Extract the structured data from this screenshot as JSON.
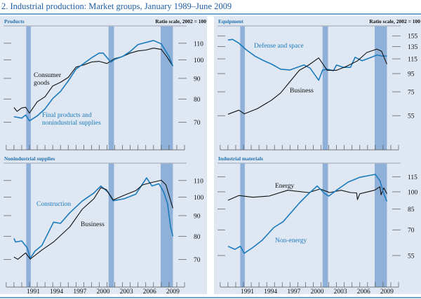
{
  "title": "2.   Industrial production: Market groups, January 1989–June 2009",
  "colors": {
    "background": "#dfe7f2",
    "recession": "#8fb0d8",
    "blue_series": "#1b7bbd",
    "black_series": "#111111",
    "title": "#1f5fa6"
  },
  "recessions": [
    [
      1990.58,
      1991.17
    ],
    [
      2001.2,
      2001.9
    ],
    [
      2007.92,
      2009.5
    ]
  ],
  "chart_data": [
    {
      "type": "line",
      "title": "Products",
      "scale_note": "Ratio scale, 2002 = 100",
      "yscale": "log",
      "ylim": [
        62,
        121
      ],
      "yticks": [
        70,
        80,
        90,
        100,
        110
      ],
      "xlim": [
        1988,
        2011
      ],
      "xticks": [],
      "grid": false,
      "series": [
        {
          "name": "Consumer goods",
          "color": "#111111",
          "label_lines": [
            "Consumer",
            "goods"
          ],
          "points": [
            [
              1989,
              76.2
            ],
            [
              1989.4,
              74.5
            ],
            [
              1990,
              76
            ],
            [
              1990.5,
              76.3
            ],
            [
              1991,
              73.8
            ],
            [
              1992,
              78.7
            ],
            [
              1993,
              81
            ],
            [
              1994,
              86.2
            ],
            [
              1995,
              88
            ],
            [
              1996,
              90.5
            ],
            [
              1997,
              96
            ],
            [
              1998,
              97.2
            ],
            [
              1999,
              98.8
            ],
            [
              2000,
              99.2
            ],
            [
              2001,
              98
            ],
            [
              2002,
              100.8
            ],
            [
              2003,
              102
            ],
            [
              2004,
              104
            ],
            [
              2005,
              105.3
            ],
            [
              2006,
              105.8
            ],
            [
              2007,
              107
            ],
            [
              2008,
              106.2
            ],
            [
              2008.7,
              102
            ],
            [
              2009.5,
              96.5
            ]
          ]
        },
        {
          "name": "Final products and nonindustrial supplies",
          "color": "#1b7bbd",
          "label_lines": [
            "Final products and",
            "nonindustrial supplies"
          ],
          "points": [
            [
              1989,
              72.3
            ],
            [
              1990,
              71.7
            ],
            [
              1990.5,
              73
            ],
            [
              1991,
              70.6
            ],
            [
              1992,
              72.6
            ],
            [
              1993,
              75.6
            ],
            [
              1994,
              80.2
            ],
            [
              1995,
              83.5
            ],
            [
              1996,
              88.7
            ],
            [
              1997,
              94.9
            ],
            [
              1998,
              98
            ],
            [
              1999,
              101.2
            ],
            [
              2000,
              104
            ],
            [
              2000.5,
              104
            ],
            [
              2001.5,
              98.8
            ],
            [
              2002,
              100.4
            ],
            [
              2003,
              102
            ],
            [
              2004,
              105
            ],
            [
              2005,
              109.2
            ],
            [
              2006,
              110.5
            ],
            [
              2007,
              111.8
            ],
            [
              2008,
              109.6
            ],
            [
              2009,
              102
            ],
            [
              2009.5,
              96.5
            ]
          ]
        }
      ]
    },
    {
      "type": "line",
      "title": "Equipment",
      "scale_note": "Ratio scale, 2002 = 100",
      "yscale": "log",
      "ylim": [
        38.3,
        174.8
      ],
      "yticks": [
        55,
        75,
        95,
        115,
        135,
        155
      ],
      "xlim": [
        1988,
        2011
      ],
      "xticks": [],
      "grid": false,
      "series": [
        {
          "name": "Defense and space",
          "color": "#1b7bbd",
          "label_lines": [
            "Defense and space"
          ],
          "points": [
            [
              1989,
              147
            ],
            [
              1989.6,
              148
            ],
            [
              1990.4,
              141
            ],
            [
              1991.3,
              130
            ],
            [
              1992.5,
              119
            ],
            [
              1993.5,
              113
            ],
            [
              1994.7,
              107
            ],
            [
              1995.8,
              100.6
            ],
            [
              1997,
              99.6
            ],
            [
              1998.8,
              106.3
            ],
            [
              1999.6,
              102
            ],
            [
              2000.7,
              87.1
            ],
            [
              2001.2,
              99.3
            ],
            [
              2001.8,
              100.6
            ],
            [
              2002.6,
              98.6
            ],
            [
              2003,
              106.1
            ],
            [
              2003.9,
              103
            ],
            [
              2004.8,
              103
            ],
            [
              2005.4,
              117.4
            ],
            [
              2006.3,
              112.2
            ],
            [
              2007.5,
              117.4
            ],
            [
              2008.2,
              121
            ],
            [
              2008.9,
              119.3
            ],
            [
              2009.5,
              119.3
            ]
          ]
        },
        {
          "name": "Business",
          "color": "#111111",
          "label_lines": [
            "Business"
          ],
          "points": [
            [
              1989,
              56
            ],
            [
              1990.4,
              59.1
            ],
            [
              1991.1,
              56.3
            ],
            [
              1992.8,
              60.3
            ],
            [
              1994.6,
              67.2
            ],
            [
              1995.8,
              73.9
            ],
            [
              1997,
              85.6
            ],
            [
              1998.2,
              99.1
            ],
            [
              1999.4,
              106
            ],
            [
              2000.7,
              116.4
            ],
            [
              2001.8,
              99.1
            ],
            [
              2003,
              99.1
            ],
            [
              2004.2,
              104
            ],
            [
              2005.7,
              112
            ],
            [
              2006.9,
              124.9
            ],
            [
              2008.2,
              130.6
            ],
            [
              2008.8,
              127
            ],
            [
              2009.5,
              107.4
            ]
          ]
        }
      ]
    },
    {
      "type": "line",
      "title": "Nonindustrial supplies",
      "scale_note": "",
      "yscale": "log",
      "ylim": [
        62,
        121
      ],
      "yticks": [
        70,
        80,
        90,
        100,
        110
      ],
      "xlim": [
        1988,
        2011
      ],
      "xticks": [
        "1991",
        "1994",
        "1997",
        "2000",
        "2003",
        "2006",
        "2009"
      ],
      "grid": false,
      "series": [
        {
          "name": "Construction",
          "color": "#1b7bbd",
          "label_lines": [
            "Construction"
          ],
          "points": [
            [
              1989,
              79
            ],
            [
              1989.2,
              77.4
            ],
            [
              1990,
              77.9
            ],
            [
              1990.7,
              74.9
            ],
            [
              1991.1,
              70.5
            ],
            [
              1991.7,
              73.4
            ],
            [
              1992.6,
              75.9
            ],
            [
              1994.1,
              86.7
            ],
            [
              1995,
              86.1
            ],
            [
              1996.2,
              91.5
            ],
            [
              1997.8,
              97.8
            ],
            [
              1999.3,
              102.4
            ],
            [
              2000.2,
              106.6
            ],
            [
              2001.1,
              103.1
            ],
            [
              2001.8,
              98
            ],
            [
              2003.2,
              99.1
            ],
            [
              2004.7,
              101.7
            ],
            [
              2006.1,
              111.7
            ],
            [
              2006.8,
              106.6
            ],
            [
              2007.7,
              108
            ],
            [
              2008.3,
              103.1
            ],
            [
              2008.8,
              96.5
            ],
            [
              2009.2,
              84.4
            ],
            [
              2009.5,
              80
            ]
          ]
        },
        {
          "name": "Business",
          "color": "#111111",
          "label_lines": [
            "Business"
          ],
          "points": [
            [
              1989,
              71
            ],
            [
              1989.5,
              70.1
            ],
            [
              1990.5,
              72.7
            ],
            [
              1991.1,
              70.2
            ],
            [
              1992.6,
              73.9
            ],
            [
              1994.1,
              77.4
            ],
            [
              1996.2,
              84.4
            ],
            [
              1997.8,
              93.3
            ],
            [
              1999.3,
              99.1
            ],
            [
              2000.2,
              105.6
            ],
            [
              2000.9,
              104.5
            ],
            [
              2001.8,
              98.4
            ],
            [
              2003.2,
              101.1
            ],
            [
              2004.7,
              103.8
            ],
            [
              2005.6,
              107.3
            ],
            [
              2006.8,
              108.8
            ],
            [
              2008,
              110.2
            ],
            [
              2008.6,
              107.3
            ],
            [
              2009.5,
              93.9
            ]
          ]
        }
      ]
    },
    {
      "type": "line",
      "title": "Industrial materials",
      "scale_note": "",
      "yscale": "log",
      "ylim": [
        43.4,
        130
      ],
      "yticks": [
        55,
        70,
        85,
        100,
        115
      ],
      "xlim": [
        1988,
        2011
      ],
      "xticks": [
        "1991",
        "1994",
        "1997",
        "2000",
        "2003",
        "2006",
        "2009"
      ],
      "grid": false,
      "series": [
        {
          "name": "Energy",
          "color": "#111111",
          "label_lines": [
            "Energy"
          ],
          "points": [
            [
              1989,
              92.4
            ],
            [
              1990.4,
              96.6
            ],
            [
              1992.2,
              95
            ],
            [
              1994.3,
              96.1
            ],
            [
              1996.7,
              101.5
            ],
            [
              1999.4,
              99.3
            ],
            [
              2000.9,
              102.7
            ],
            [
              2002.1,
              99.3
            ],
            [
              2003.6,
              101.5
            ],
            [
              2004.8,
              99.3
            ],
            [
              2005.6,
              99
            ],
            [
              2005.7,
              93
            ],
            [
              2006,
              98.2
            ],
            [
              2007.9,
              101.5
            ],
            [
              2008.6,
              104.9
            ],
            [
              2008.75,
              97.2
            ],
            [
              2009.1,
              103.8
            ],
            [
              2009.5,
              98.2
            ]
          ]
        },
        {
          "name": "Non-energy",
          "color": "#1b7bbd",
          "label_lines": [
            "Non-energy"
          ],
          "points": [
            [
              1989,
              60
            ],
            [
              1989.9,
              58.3
            ],
            [
              1990.6,
              60
            ],
            [
              1991.1,
              56.2
            ],
            [
              1992.2,
              59.3
            ],
            [
              1993.4,
              63.4
            ],
            [
              1994.9,
              71.5
            ],
            [
              1996.1,
              75.5
            ],
            [
              1998.2,
              90
            ],
            [
              1999.4,
              98.2
            ],
            [
              2000.5,
              105.6
            ],
            [
              2001.5,
              98.2
            ],
            [
              2002,
              96.1
            ],
            [
              2003,
              101.5
            ],
            [
              2004.5,
              109.6
            ],
            [
              2006,
              114.6
            ],
            [
              2008,
              117.8
            ],
            [
              2008.6,
              110.9
            ],
            [
              2009.1,
              98.2
            ],
            [
              2009.5,
              91.4
            ]
          ]
        }
      ]
    }
  ]
}
